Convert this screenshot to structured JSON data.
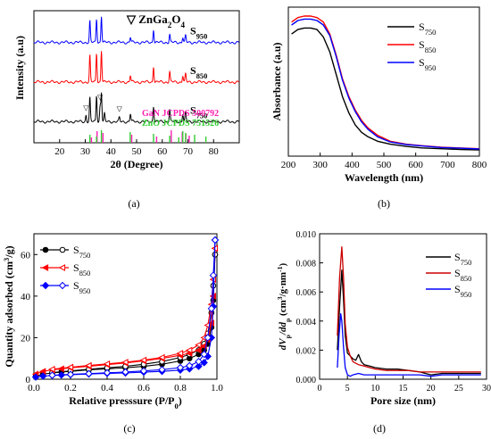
{
  "panels": [
    {
      "id": "a",
      "caption": "(a)",
      "chart_data": {
        "type": "line",
        "xlabel": "2θ (Degree)",
        "ylabel": "Intensity (a.u)",
        "xlim": [
          10,
          90
        ],
        "xticks": [
          20,
          30,
          40,
          50,
          60,
          70,
          80
        ],
        "yticks": false,
        "marker_legend": {
          "symbol": "▽",
          "name": "ZnGa",
          "sub1": "2",
          "mid": "O",
          "sub2": "4"
        },
        "series": [
          {
            "name": "S",
            "sub": "950",
            "color": "#0000ff",
            "offset": 0.76,
            "peaks": [
              [
                31.8,
                0.16
              ],
              [
                34.4,
                0.18
              ],
              [
                36.3,
                0.2
              ],
              [
                47.6,
                0.04
              ],
              [
                56.6,
                0.1
              ],
              [
                62.9,
                0.06
              ],
              [
                68.0,
                0.04
              ],
              [
                69.1,
                0.05
              ]
            ]
          },
          {
            "name": "S",
            "sub": "850",
            "color": "#ff0000",
            "offset": 0.46,
            "peaks": [
              [
                31.8,
                0.2
              ],
              [
                34.4,
                0.22
              ],
              [
                36.3,
                0.24
              ],
              [
                47.6,
                0.05
              ],
              [
                56.6,
                0.12
              ],
              [
                62.9,
                0.08
              ],
              [
                68.0,
                0.05
              ],
              [
                69.1,
                0.06
              ]
            ]
          },
          {
            "name": "S",
            "sub": "750",
            "color": "#000000",
            "offset": 0.16,
            "peaks": [
              [
                30.3,
                0.05
              ],
              [
                31.8,
                0.18
              ],
              [
                34.4,
                0.2
              ],
              [
                35.8,
                0.12
              ],
              [
                36.3,
                0.22
              ],
              [
                37.5,
                0.06
              ],
              [
                43.3,
                0.03
              ],
              [
                47.6,
                0.06
              ],
              [
                56.6,
                0.12
              ],
              [
                62.9,
                0.09
              ],
              [
                68.0,
                0.06
              ],
              [
                69.1,
                0.07
              ]
            ]
          }
        ],
        "spinel_markers": [
          30.3,
          35.8,
          43.3
        ],
        "reference_bars": [
          {
            "label": "GaN JCPDS 500792",
            "color": "#ff1fb4",
            "positions": [
              32.4,
              34.6,
              36.9,
              48.1,
              57.8,
              63.5,
              67.8,
              69.2,
              70.5
            ]
          },
          {
            "label": "ZnO JCPDS 751526",
            "color": "#33cc33",
            "positions": [
              31.8,
              34.4,
              36.3,
              47.5,
              56.6,
              62.9,
              66.4,
              68.0,
              69.1,
              72.6,
              77.0
            ]
          }
        ]
      }
    },
    {
      "id": "b",
      "caption": "(b)",
      "chart_data": {
        "type": "line",
        "xlabel": "Wavelength (nm)",
        "ylabel": "Absorbance (a.u)",
        "xlim": [
          200,
          800
        ],
        "ylim": [
          0,
          1
        ],
        "xticks": [
          200,
          300,
          400,
          500,
          600,
          700,
          800
        ],
        "yticks": false,
        "legend_position": "top-right",
        "series": [
          {
            "name": "S",
            "sub": "750",
            "color": "#000000",
            "x": [
              210,
              230,
              250,
              270,
              290,
              310,
              330,
              350,
              370,
              390,
              410,
              430,
              450,
              480,
              520,
              570,
              620,
              680,
              740,
              800
            ],
            "y": [
              0.82,
              0.85,
              0.86,
              0.86,
              0.85,
              0.8,
              0.7,
              0.55,
              0.4,
              0.29,
              0.21,
              0.16,
              0.13,
              0.1,
              0.08,
              0.065,
              0.055,
              0.05,
              0.045,
              0.042
            ]
          },
          {
            "name": "S",
            "sub": "850",
            "color": "#ff0000",
            "x": [
              210,
              230,
              250,
              270,
              290,
              310,
              330,
              350,
              370,
              390,
              410,
              430,
              450,
              480,
              520,
              570,
              620,
              680,
              740,
              800
            ],
            "y": [
              0.9,
              0.93,
              0.94,
              0.94,
              0.93,
              0.9,
              0.82,
              0.68,
              0.52,
              0.4,
              0.31,
              0.24,
              0.19,
              0.14,
              0.1,
              0.08,
              0.07,
              0.06,
              0.055,
              0.05
            ]
          },
          {
            "name": "S",
            "sub": "950",
            "color": "#0000ff",
            "x": [
              210,
              230,
              250,
              270,
              290,
              310,
              330,
              350,
              370,
              390,
              410,
              430,
              450,
              480,
              520,
              570,
              620,
              680,
              740,
              800
            ],
            "y": [
              0.88,
              0.91,
              0.92,
              0.92,
              0.91,
              0.88,
              0.81,
              0.67,
              0.51,
              0.39,
              0.3,
              0.23,
              0.18,
              0.13,
              0.095,
              0.078,
              0.068,
              0.058,
              0.053,
              0.048
            ]
          }
        ]
      }
    },
    {
      "id": "c",
      "caption": "(c)",
      "chart_data": {
        "type": "line",
        "xlabel_prefix": "Relative presssure (P/P",
        "xlabel_sub": "0",
        "xlabel_suffix": ")",
        "ylabel_prefix": "Quantity adsorbed (cm",
        "ylabel_sup": "3",
        "ylabel_suffix": "/g)",
        "xlim": [
          0,
          1.0
        ],
        "ylim": [
          0,
          70
        ],
        "xticks": [
          0.0,
          0.2,
          0.4,
          0.6,
          0.8,
          1.0
        ],
        "yticks": [
          0,
          20,
          40,
          60
        ],
        "legend_position": "top-left",
        "series": [
          {
            "name": "S",
            "sub": "750",
            "color": "#000000",
            "marker": "circle",
            "adsorption": {
              "x": [
                0.01,
                0.05,
                0.1,
                0.15,
                0.2,
                0.3,
                0.4,
                0.5,
                0.6,
                0.7,
                0.8,
                0.85,
                0.9,
                0.93,
                0.95,
                0.97,
                0.98,
                0.99
              ],
              "y": [
                1.5,
                2.5,
                3.0,
                3.5,
                3.8,
                4.5,
                5.0,
                5.5,
                6.2,
                7.2,
                8.8,
                10,
                12,
                14,
                17,
                25,
                38,
                60
              ]
            },
            "desorption": {
              "x": [
                0.99,
                0.98,
                0.97,
                0.95,
                0.93,
                0.9,
                0.85,
                0.8,
                0.7,
                0.6,
                0.5,
                0.4,
                0.3,
                0.2,
                0.1
              ],
              "y": [
                60,
                45,
                32,
                22,
                17,
                14,
                12,
                10.5,
                8.5,
                7.2,
                6.2,
                5.5,
                4.8,
                4.0,
                3.2
              ]
            }
          },
          {
            "name": "S",
            "sub": "850",
            "color": "#ff0000",
            "marker": "triangle",
            "adsorption": {
              "x": [
                0.01,
                0.05,
                0.1,
                0.15,
                0.2,
                0.3,
                0.4,
                0.5,
                0.6,
                0.7,
                0.8,
                0.85,
                0.9,
                0.93,
                0.95,
                0.97,
                0.98,
                0.99
              ],
              "y": [
                2.5,
                3.8,
                4.5,
                5.0,
                5.5,
                6.2,
                7.0,
                7.8,
                8.8,
                10,
                11.5,
                12.5,
                14,
                16,
                19,
                27,
                40,
                63
              ]
            },
            "desorption": {
              "x": [
                0.99,
                0.98,
                0.97,
                0.95,
                0.93,
                0.9,
                0.85,
                0.8,
                0.7,
                0.6,
                0.5,
                0.4,
                0.3,
                0.2,
                0.1
              ],
              "y": [
                63,
                48,
                36,
                26,
                20,
                16.5,
                14,
                12.5,
                10.5,
                9.2,
                8.2,
                7.4,
                6.6,
                5.8,
                4.8
              ]
            }
          },
          {
            "name": "S",
            "sub": "950",
            "color": "#0000ff",
            "marker": "diamond",
            "adsorption": {
              "x": [
                0.01,
                0.05,
                0.1,
                0.15,
                0.2,
                0.3,
                0.4,
                0.5,
                0.6,
                0.7,
                0.8,
                0.85,
                0.9,
                0.93,
                0.95,
                0.97,
                0.98,
                0.99
              ],
              "y": [
                1.0,
                1.5,
                1.8,
                2.0,
                2.2,
                2.5,
                2.8,
                3.0,
                3.4,
                3.8,
                4.4,
                5.0,
                6.2,
                8,
                11,
                20,
                35,
                67
              ]
            },
            "desorption": {
              "x": [
                0.99,
                0.98,
                0.97,
                0.95,
                0.93,
                0.9,
                0.85,
                0.8,
                0.7,
                0.6,
                0.5,
                0.4,
                0.3,
                0.2,
                0.1
              ],
              "y": [
                67,
                50,
                34,
                20,
                12,
                8.5,
                6.5,
                5.6,
                4.6,
                4.0,
                3.5,
                3.1,
                2.7,
                2.3,
                1.9
              ]
            }
          }
        ]
      }
    },
    {
      "id": "d",
      "caption": "(d)",
      "chart_data": {
        "type": "line",
        "xlabel": "Pore size (nm)",
        "ylabel_parts": [
          "dV",
          "p",
          "/dd",
          "p",
          " (cm",
          "3",
          "/g·nm",
          "-1",
          ")"
        ],
        "xlim": [
          0,
          30
        ],
        "ylim": [
          0,
          0.01
        ],
        "xticks": [
          0,
          5,
          10,
          15,
          20,
          25,
          30
        ],
        "yticks": [
          "0.000",
          "0.002",
          "0.004",
          "0.006",
          "0.008",
          "0.010"
        ],
        "ytick_values": [
          0,
          0.002,
          0.004,
          0.006,
          0.008,
          0.01
        ],
        "legend_position": "top-right",
        "series": [
          {
            "name": "S",
            "sub": "750",
            "color": "#000000",
            "x": [
              3.2,
              3.6,
              4.0,
              4.3,
              4.6,
              5.0,
              5.5,
              6.0,
              6.5,
              7.0,
              7.5,
              8.0,
              9.0,
              10,
              12,
              14,
              16,
              18,
              20,
              22,
              25,
              28,
              29
            ],
            "y": [
              0.002,
              0.005,
              0.0075,
              0.0055,
              0.003,
              0.0018,
              0.0016,
              0.0014,
              0.0013,
              0.0017,
              0.0012,
              0.001,
              0.0009,
              0.0008,
              0.0007,
              0.0007,
              0.0006,
              0.0005,
              0.0003,
              0.0004,
              0.0004,
              0.0004,
              0.0004
            ]
          },
          {
            "name": "S",
            "sub": "850",
            "color": "#cc0000",
            "x": [
              3.2,
              3.6,
              4.0,
              4.3,
              4.6,
              5.0,
              5.5,
              6.0,
              7.0,
              8.0,
              9.0,
              10,
              12,
              14,
              16,
              18,
              20,
              22,
              25,
              28,
              29
            ],
            "y": [
              0.003,
              0.007,
              0.0091,
              0.007,
              0.0038,
              0.0022,
              0.0016,
              0.0012,
              0.001,
              0.0009,
              0.0008,
              0.0007,
              0.0006,
              0.0006,
              0.0006,
              0.0005,
              0.0005,
              0.0005,
              0.0005,
              0.0005,
              0.0005
            ]
          },
          {
            "name": "S",
            "sub": "950",
            "color": "#0000ff",
            "x": [
              3.2,
              3.5,
              3.8,
              4.0,
              4.3,
              4.6,
              5.0,
              5.5,
              6.0,
              7.0,
              8.0,
              10,
              12,
              14,
              16,
              18,
              20,
              22,
              25,
              28,
              29
            ],
            "y": [
              0.0008,
              0.003,
              0.0045,
              0.004,
              0.0022,
              0.0008,
              0.0003,
              0.0002,
              0.0003,
              0.0004,
              0.0003,
              0.0003,
              0.0003,
              0.0003,
              0.0003,
              0.0003,
              0.0002,
              0.0003,
              0.0003,
              0.0003,
              0.0003
            ]
          }
        ]
      }
    }
  ]
}
